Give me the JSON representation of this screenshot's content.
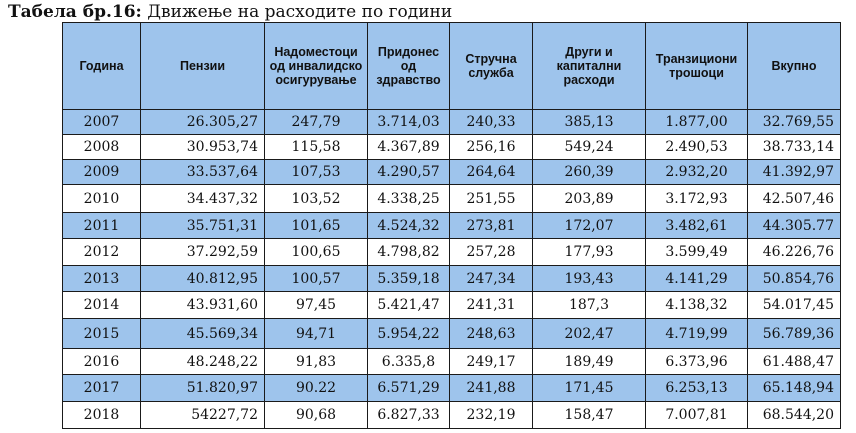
{
  "caption": {
    "label": "Табела бр.16:",
    "text": " Движење на расходите по години"
  },
  "colors": {
    "header_bg": "#9ec4ec",
    "row_alt_bg": "#9ec4ec",
    "row_bg": "#ffffff"
  },
  "table": {
    "headers": [
      "Година",
      "Пензии",
      "Надоместоци од инвалидско осигурување",
      "Придонес од здравство",
      "Стручна служба",
      "Други и капитални расходи",
      "Транзициони трошоци",
      "Вкупно"
    ],
    "rows": [
      [
        "2007",
        "26.305,27",
        "247,79",
        "3.714,03",
        "240,33",
        "385,13",
        "1.877,00",
        "32.769,55"
      ],
      [
        "2008",
        "30.953,74",
        "115,58",
        "4.367,89",
        "256,16",
        "549,24",
        "2.490,53",
        "38.733,14"
      ],
      [
        "2009",
        "33.537,64",
        "107,53",
        "4.290,57",
        "264,64",
        "260,39",
        "2.932,20",
        "41.392,97"
      ],
      [
        "2010",
        "34.437,32",
        "103,52",
        "4.338,25",
        "251,55",
        "203,89",
        "3.172,93",
        "42.507,46"
      ],
      [
        "2011",
        "35.751,31",
        "101,65",
        "4.524,32",
        "273,81",
        "172,07",
        "3.482,61",
        "44.305.77"
      ],
      [
        "2012",
        "37.292,59",
        "100,65",
        "4.798,82",
        "257,28",
        "177,93",
        "3.599,49",
        "46.226,76"
      ],
      [
        "2013",
        "40.812,95",
        "100,57",
        "5.359,18",
        "247,34",
        "193,43",
        "4.141,29",
        "50.854,76"
      ],
      [
        "2014",
        "43.931,60",
        "97,45",
        "5.421,47",
        "241,31",
        "187,3",
        "4.138,32",
        "54.017,45"
      ],
      [
        "2015",
        "45.569,34",
        "94,71",
        "5.954,22",
        "248,63",
        "202,47",
        "4.719,99",
        "56.789,36"
      ],
      [
        "2016",
        "48.248,22",
        "91,83",
        "6.335,8",
        "249,17",
        "189,49",
        "6.373,96",
        "61.488,47"
      ],
      [
        "2017",
        "51.820,97",
        "90.22",
        "6.571,29",
        "241,88",
        "171,45",
        "6.253,13",
        "65.148,94"
      ],
      [
        "2018",
        "54227,72",
        "90,68",
        "6.827,33",
        "232,19",
        "158,47",
        "7.007,81",
        "68.544,20"
      ]
    ]
  }
}
